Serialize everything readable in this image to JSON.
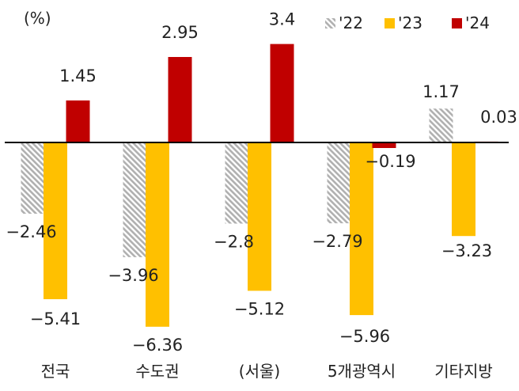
{
  "chart_data": {
    "type": "bar",
    "unit_label": "(%)",
    "categories": [
      "전국",
      "수도권",
      "(서울)",
      "5개광역시",
      "기타지방"
    ],
    "series": [
      {
        "name": "'22",
        "values": [
          -2.46,
          -3.96,
          -2.8,
          -2.79,
          1.17
        ],
        "color": "#b5b5b5",
        "pattern": "hatched",
        "data_labels": [
          "-2.46",
          "-3.96",
          "-2.8",
          "-2.79",
          "1.17"
        ]
      },
      {
        "name": "'23",
        "values": [
          -5.41,
          -6.36,
          -5.12,
          -5.96,
          -3.23
        ],
        "color": "#ffc000",
        "pattern": "solid",
        "data_labels": [
          "-5.41",
          "-6.36",
          "-5.12",
          "-5.96",
          "-3.23"
        ]
      },
      {
        "name": "'24",
        "values": [
          1.45,
          2.95,
          3.4,
          -0.19,
          0.03
        ],
        "color": "#c00000",
        "pattern": "solid",
        "data_labels": [
          "1.45",
          "2.95",
          "3.4",
          "-0.19",
          "0.03"
        ]
      }
    ],
    "ylim": [
      -7,
      4.5
    ],
    "grid": false,
    "legend_position": "top-right"
  }
}
